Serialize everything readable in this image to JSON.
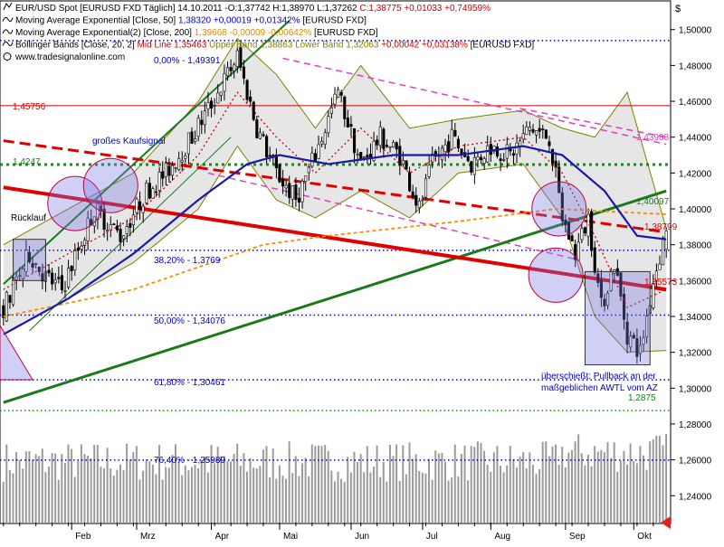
{
  "header": {
    "currency_symbol": "$",
    "lines": [
      {
        "icon": "instrument-icon",
        "segs": [
          {
            "t": "EUR/USD Spot [EURUSD FXD  Täglich] 14.10.2011 -O:1,37742 H:1,38970 L:1,37262 ",
            "c": "#000000"
          },
          {
            "t": "C:1,38775 +0,01033 +0,74959%",
            "c": "#cc0000"
          }
        ]
      },
      {
        "icon": "line-study-icon",
        "segs": [
          {
            "t": "Moving Average Exponential [Close, 50] ",
            "c": "#000000"
          },
          {
            "t": "1,38320 +0,00019 +0,01342%",
            "c": "#0000cc"
          },
          {
            "t": " [EURUSD FXD]",
            "c": "#000000"
          }
        ]
      },
      {
        "icon": "line-study-icon",
        "segs": [
          {
            "t": "Moving Average Exponential(2) [Close, 200] ",
            "c": "#000000"
          },
          {
            "t": "1,39668 -0,00009 -0,00642%",
            "c": "#e08a00"
          },
          {
            "t": " [EURUSD FXD]",
            "c": "#000000"
          }
        ]
      },
      {
        "icon": "line-study-icon",
        "segs": [
          {
            "t": "Bollinger Bands [Close, 20, 2] ",
            "c": "#000000"
          },
          {
            "t": "Mid Line 1,35463 ",
            "c": "#cc0000"
          },
          {
            "t": "Upper Band 1,38863 Lower Band 1,32063 ",
            "c": "#808000"
          },
          {
            "t": "+0,00042 +0,03138%",
            "c": "#cc0000"
          },
          {
            "t": " [EURUSD FXD]",
            "c": "#000000"
          }
        ]
      },
      {
        "icon": "copyright-icon",
        "segs": [
          {
            "t": "www.tradesignalonline.com",
            "c": "#000000"
          }
        ]
      }
    ]
  },
  "annotations": {
    "fib_0": "0,00% - 1,49391",
    "fib_382": "38,20% - 1,3769",
    "fib_50": "50,00% - 1,34076",
    "fib_618": "61,80% - 1,30461",
    "fib_764": "76,40% - 1,25989",
    "level_14575": "1,45756",
    "level_14247": "1,4247",
    "level_12875": "1,2875",
    "kaufsignal": "großes Kaufsignal",
    "ruecklauf": "Rücklauf",
    "uebershoot_1": "überschießt: Pullback an der",
    "uebershoot_2": "maßgeblichen AWTL vom AZ",
    "right_14398": "1,43988",
    "right_140097": "1,40097",
    "right_138799": "1,38799",
    "right_135573": "1,35573"
  },
  "colors": {
    "up_candle": "#ffffff",
    "down_candle": "#000000",
    "ema50": "#1a1aa8",
    "ema200": "#ff8c00",
    "bb_mid": "#cc0000",
    "bb_band": "#808000",
    "trend_red": "#e00000",
    "trend_green": "#1a7a1a",
    "pink": "#e040c0",
    "fib_dots": "#0000cc"
  },
  "chart_data": {
    "type": "candlestick",
    "instrument": "EUR/USD Spot",
    "interval": "Täglich",
    "last_bar": {
      "date": "14.10.2011",
      "open": 1.37742,
      "high": 1.3897,
      "low": 1.37262,
      "close": 1.38775
    },
    "ylim": [
      1.225,
      1.515
    ],
    "y_ticks": [
      "1,50000",
      "1,48000",
      "1,46000",
      "1,44000",
      "1,42000",
      "1,40000",
      "1,38000",
      "1,36000",
      "1,34000",
      "1,32000",
      "1,30000",
      "1,28000",
      "1,26000",
      "1,24000"
    ],
    "y_tick_values": [
      1.5,
      1.48,
      1.46,
      1.44,
      1.42,
      1.4,
      1.38,
      1.36,
      1.34,
      1.32,
      1.3,
      1.28,
      1.26,
      1.24
    ],
    "x_months": [
      "Feb",
      "Mrz",
      "Apr",
      "Mai",
      "Jun",
      "Jul",
      "Aug",
      "Sep",
      "Okt"
    ],
    "x_month_start_bar": [
      21,
      41,
      64,
      85,
      107,
      129,
      150,
      173,
      194
    ],
    "bar_count": 205,
    "anchors": [
      [
        0,
        1.345
      ],
      [
        8,
        1.375
      ],
      [
        13,
        1.362
      ],
      [
        18,
        1.355
      ],
      [
        28,
        1.4
      ],
      [
        36,
        1.385
      ],
      [
        44,
        1.41
      ],
      [
        50,
        1.42
      ],
      [
        58,
        1.44
      ],
      [
        66,
        1.465
      ],
      [
        72,
        1.485
      ],
      [
        78,
        1.445
      ],
      [
        84,
        1.42
      ],
      [
        90,
        1.405
      ],
      [
        96,
        1.43
      ],
      [
        103,
        1.465
      ],
      [
        110,
        1.425
      ],
      [
        116,
        1.44
      ],
      [
        122,
        1.43
      ],
      [
        128,
        1.4
      ],
      [
        132,
        1.425
      ],
      [
        138,
        1.44
      ],
      [
        144,
        1.425
      ],
      [
        150,
        1.435
      ],
      [
        156,
        1.43
      ],
      [
        162,
        1.445
      ],
      [
        168,
        1.44
      ],
      [
        172,
        1.395
      ],
      [
        176,
        1.375
      ],
      [
        180,
        1.395
      ],
      [
        184,
        1.345
      ],
      [
        188,
        1.37
      ],
      [
        192,
        1.33
      ],
      [
        196,
        1.32
      ],
      [
        200,
        1.36
      ],
      [
        204,
        1.388
      ]
    ],
    "indicators": {
      "ema50": [
        [
          0,
          1.33
        ],
        [
          20,
          1.35
        ],
        [
          40,
          1.375
        ],
        [
          60,
          1.405
        ],
        [
          75,
          1.425
        ],
        [
          85,
          1.43
        ],
        [
          100,
          1.425
        ],
        [
          120,
          1.43
        ],
        [
          140,
          1.43
        ],
        [
          160,
          1.435
        ],
        [
          172,
          1.43
        ],
        [
          185,
          1.41
        ],
        [
          195,
          1.385
        ],
        [
          204,
          1.383
        ]
      ],
      "ema200": [
        [
          0,
          1.34
        ],
        [
          40,
          1.355
        ],
        [
          80,
          1.38
        ],
        [
          100,
          1.385
        ],
        [
          140,
          1.393
        ],
        [
          170,
          1.4
        ],
        [
          204,
          1.397
        ]
      ],
      "bb_mid": [
        [
          0,
          1.355
        ],
        [
          20,
          1.375
        ],
        [
          40,
          1.395
        ],
        [
          60,
          1.43
        ],
        [
          72,
          1.465
        ],
        [
          84,
          1.44
        ],
        [
          96,
          1.42
        ],
        [
          110,
          1.445
        ],
        [
          125,
          1.42
        ],
        [
          140,
          1.435
        ],
        [
          160,
          1.44
        ],
        [
          172,
          1.42
        ],
        [
          182,
          1.385
        ],
        [
          192,
          1.345
        ],
        [
          204,
          1.355
        ]
      ],
      "bb_upper": [
        [
          0,
          1.38
        ],
        [
          20,
          1.4
        ],
        [
          40,
          1.42
        ],
        [
          60,
          1.46
        ],
        [
          72,
          1.495
        ],
        [
          84,
          1.475
        ],
        [
          96,
          1.445
        ],
        [
          110,
          1.48
        ],
        [
          125,
          1.445
        ],
        [
          140,
          1.45
        ],
        [
          160,
          1.455
        ],
        [
          172,
          1.445
        ],
        [
          182,
          1.44
        ],
        [
          192,
          1.465
        ],
        [
          204,
          1.389
        ]
      ],
      "bb_lower": [
        [
          0,
          1.33
        ],
        [
          20,
          1.35
        ],
        [
          40,
          1.37
        ],
        [
          60,
          1.4
        ],
        [
          72,
          1.435
        ],
        [
          84,
          1.405
        ],
        [
          96,
          1.395
        ],
        [
          110,
          1.41
        ],
        [
          125,
          1.395
        ],
        [
          140,
          1.42
        ],
        [
          160,
          1.425
        ],
        [
          172,
          1.395
        ],
        [
          182,
          1.34
        ],
        [
          192,
          1.32
        ],
        [
          204,
          1.321
        ]
      ]
    },
    "trendlines": {
      "red_solid": [
        [
          0,
          1.412
        ],
        [
          204,
          1.355
        ]
      ],
      "red_dashed": [
        [
          0,
          1.438
        ],
        [
          204,
          1.387
        ]
      ],
      "green_upper": [
        [
          0,
          1.358
        ],
        [
          88,
          1.505
        ]
      ],
      "green_lower": [
        [
          0,
          1.292
        ],
        [
          204,
          1.41
        ]
      ],
      "green_thin": [
        [
          8,
          1.332
        ],
        [
          70,
          1.44
        ]
      ],
      "pink_upper": [
        [
          86,
          1.484
        ],
        [
          204,
          1.436
        ]
      ],
      "pink_lower": [
        [
          63,
          1.42
        ],
        [
          176,
          1.372
        ]
      ],
      "pink_short": [
        [
          159,
          1.456
        ],
        [
          204,
          1.44
        ]
      ]
    },
    "horizontal_levels": [
      {
        "y": 1.49391,
        "label_key": "fib_0",
        "color": "#0000cc",
        "style": "dotted"
      },
      {
        "y": 1.45756,
        "label_key": "level_14575",
        "color": "#cc0000",
        "style": "solid"
      },
      {
        "y": 1.4247,
        "label_key": "level_14247",
        "color": "#1a8a1a",
        "style": "dotted-thick"
      },
      {
        "y": 1.3769,
        "label_key": "fib_382",
        "color": "#0000cc",
        "style": "dotted"
      },
      {
        "y": 1.34076,
        "label_key": "fib_50",
        "color": "#0000cc",
        "style": "dotted"
      },
      {
        "y": 1.30461,
        "label_key": "fib_618",
        "color": "#0000cc",
        "style": "dotted"
      },
      {
        "y": 1.2875,
        "label_key": "level_12875",
        "color": "#1a8a1a",
        "style": "dotted"
      },
      {
        "y": 1.25989,
        "label_key": "fib_764",
        "color": "#0000cc",
        "style": "dotted"
      }
    ],
    "circles": [
      [
        22,
        1.403
      ],
      [
        33,
        1.413
      ],
      [
        171,
        1.4
      ],
      [
        170,
        1.363
      ]
    ],
    "boxes": [
      {
        "x0": 3,
        "x1": 13,
        "y0": 1.36,
        "y1": 1.383
      },
      {
        "x0": 179,
        "x1": 199,
        "y0": 1.313,
        "y1": 1.365
      }
    ]
  }
}
